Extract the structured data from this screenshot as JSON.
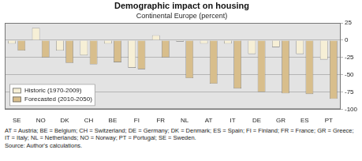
{
  "chart_data": {
    "type": "bar",
    "title": "Demographic impact on housing",
    "subtitle": "Continental Europe (percent)",
    "categories": [
      "SE",
      "NO",
      "DK",
      "CH",
      "BE",
      "FI",
      "FR",
      "NL",
      "AT",
      "IT",
      "DE",
      "GR",
      "ES",
      "PT"
    ],
    "series": [
      {
        "name": "Historic (1970-2009)",
        "color": "#f6efd6",
        "values": [
          -5,
          18,
          -15,
          -22,
          -5,
          -40,
          7,
          -2,
          -5,
          -5,
          -20,
          -10,
          -20,
          -28
        ]
      },
      {
        "name": "Forecasted (2010-2050)",
        "color": "#d8be8c",
        "values": [
          -15,
          -25,
          -33,
          -35,
          -32,
          -42,
          -25,
          -55,
          -63,
          -70,
          -75,
          -77,
          -78,
          -85
        ]
      }
    ],
    "ylim": [
      -100,
      25
    ],
    "yticks": [
      -100,
      -75,
      -50,
      -25,
      0,
      25
    ],
    "grid": true,
    "legend": "lower left",
    "annotations": [
      "AT = Austria; BE = Belgium; CH = Switzerland; DE = Germany; DK = Denmark; ES = Spain; FI = Finland; FR = France; GR = Greece;",
      "IT = Italy; NL = Netherlands; NO = Norway; PT = Portugal; SE = Sweden."
    ],
    "source": "Source: Author's calculations."
  }
}
